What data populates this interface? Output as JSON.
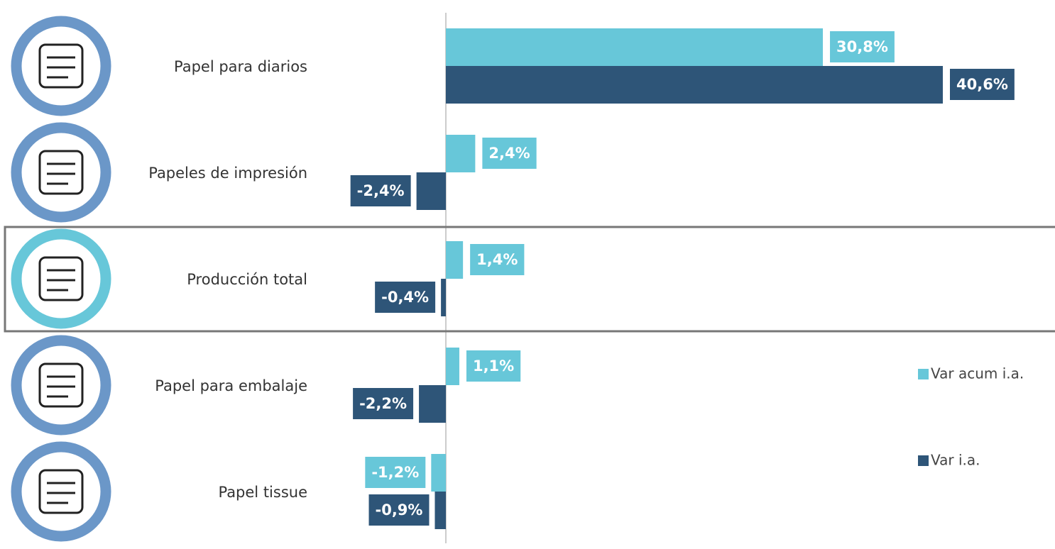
{
  "chart_data": {
    "type": "bar",
    "orientation": "horizontal",
    "categories": [
      "Papel para diarios",
      "Papeles de impresión",
      "Producción total",
      "Papel para embalaje",
      "Papel tissue"
    ],
    "series": [
      {
        "name": "Var acum i.a.",
        "color": "#67c7d9",
        "values": [
          30.8,
          2.4,
          1.4,
          1.1,
          -1.2
        ],
        "value_labels": [
          "30,8%",
          "2,4%",
          "1,4%",
          "1,1%",
          "-1,2%"
        ]
      },
      {
        "name": "Var i.a.",
        "color": "#2e5578",
        "values": [
          40.6,
          -2.4,
          -0.4,
          -2.2,
          -0.9
        ],
        "value_labels": [
          "40,6%",
          "-2,4%",
          "-0,4%",
          "-2,2%",
          "-0,9%"
        ]
      }
    ],
    "legend": "right"
  }
}
